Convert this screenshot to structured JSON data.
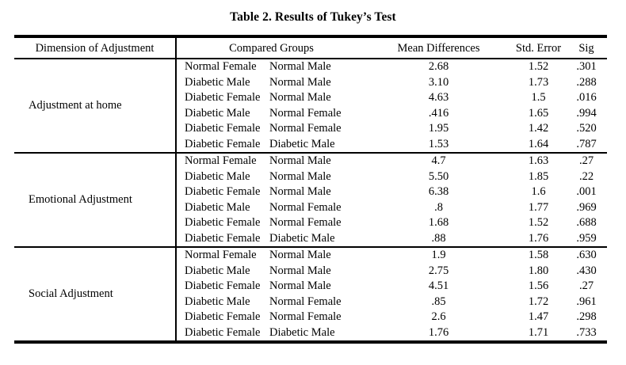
{
  "title": "Table 2. Results of Tukey’s Test",
  "table": {
    "headers": [
      "Dimension of Adjustment",
      "Compared Groups",
      "Mean Differences",
      "Std. Error",
      "Sig"
    ],
    "sections": [
      {
        "dimension": "Adjustment at home",
        "rows": [
          {
            "group1": "Normal Female",
            "group2": "Normal Male",
            "mean_diff": "2.68",
            "std_error": "1.52",
            "sig": ".301"
          },
          {
            "group1": "Diabetic Male",
            "group2": "Normal Male",
            "mean_diff": "3.10",
            "std_error": "1.73",
            "sig": ".288"
          },
          {
            "group1": "Diabetic Female",
            "group2": "Normal Male",
            "mean_diff": "4.63",
            "std_error": "1.5",
            "sig": ".016"
          },
          {
            "group1": "Diabetic Male",
            "group2": "Normal Female",
            "mean_diff": ".416",
            "std_error": "1.65",
            "sig": ".994"
          },
          {
            "group1": "Diabetic Female",
            "group2": "Normal Female",
            "mean_diff": "1.95",
            "std_error": "1.42",
            "sig": ".520"
          },
          {
            "group1": "Diabetic Female",
            "group2": "Diabetic Male",
            "mean_diff": "1.53",
            "std_error": "1.64",
            "sig": ".787"
          }
        ]
      },
      {
        "dimension": "Emotional Adjustment",
        "rows": [
          {
            "group1": "Normal Female",
            "group2": "Normal Male",
            "mean_diff": "4.7",
            "std_error": "1.63",
            "sig": ".27"
          },
          {
            "group1": "Diabetic Male",
            "group2": "Normal Male",
            "mean_diff": "5.50",
            "std_error": "1.85",
            "sig": ".22"
          },
          {
            "group1": "Diabetic Female",
            "group2": "Normal Male",
            "mean_diff": "6.38",
            "std_error": "1.6",
            "sig": ".001"
          },
          {
            "group1": "Diabetic Male",
            "group2": "Normal Female",
            "mean_diff": ".8",
            "std_error": "1.77",
            "sig": ".969"
          },
          {
            "group1": "Diabetic Female",
            "group2": "Normal Female",
            "mean_diff": "1.68",
            "std_error": "1.52",
            "sig": ".688"
          },
          {
            "group1": "Diabetic Female",
            "group2": "Diabetic Male",
            "mean_diff": ".88",
            "std_error": "1.76",
            "sig": ".959"
          }
        ]
      },
      {
        "dimension": "Social Adjustment",
        "rows": [
          {
            "group1": "Normal Female",
            "group2": "Normal Male",
            "mean_diff": "1.9",
            "std_error": "1.58",
            "sig": ".630"
          },
          {
            "group1": "Diabetic Male",
            "group2": "Normal Male",
            "mean_diff": "2.75",
            "std_error": "1.80",
            "sig": ".430"
          },
          {
            "group1": "Diabetic Female",
            "group2": "Normal Male",
            "mean_diff": "4.51",
            "std_error": "1.56",
            "sig": ".27"
          },
          {
            "group1": "Diabetic Male",
            "group2": "Normal Female",
            "mean_diff": ".85",
            "std_error": "1.72",
            "sig": ".961"
          },
          {
            "group1": "Diabetic Female",
            "group2": "Normal Female",
            "mean_diff": "2.6",
            "std_error": "1.47",
            "sig": ".298"
          },
          {
            "group1": "Diabetic Female",
            "group2": "Diabetic Male",
            "mean_diff": "1.76",
            "std_error": "1.71",
            "sig": ".733"
          }
        ]
      }
    ]
  }
}
